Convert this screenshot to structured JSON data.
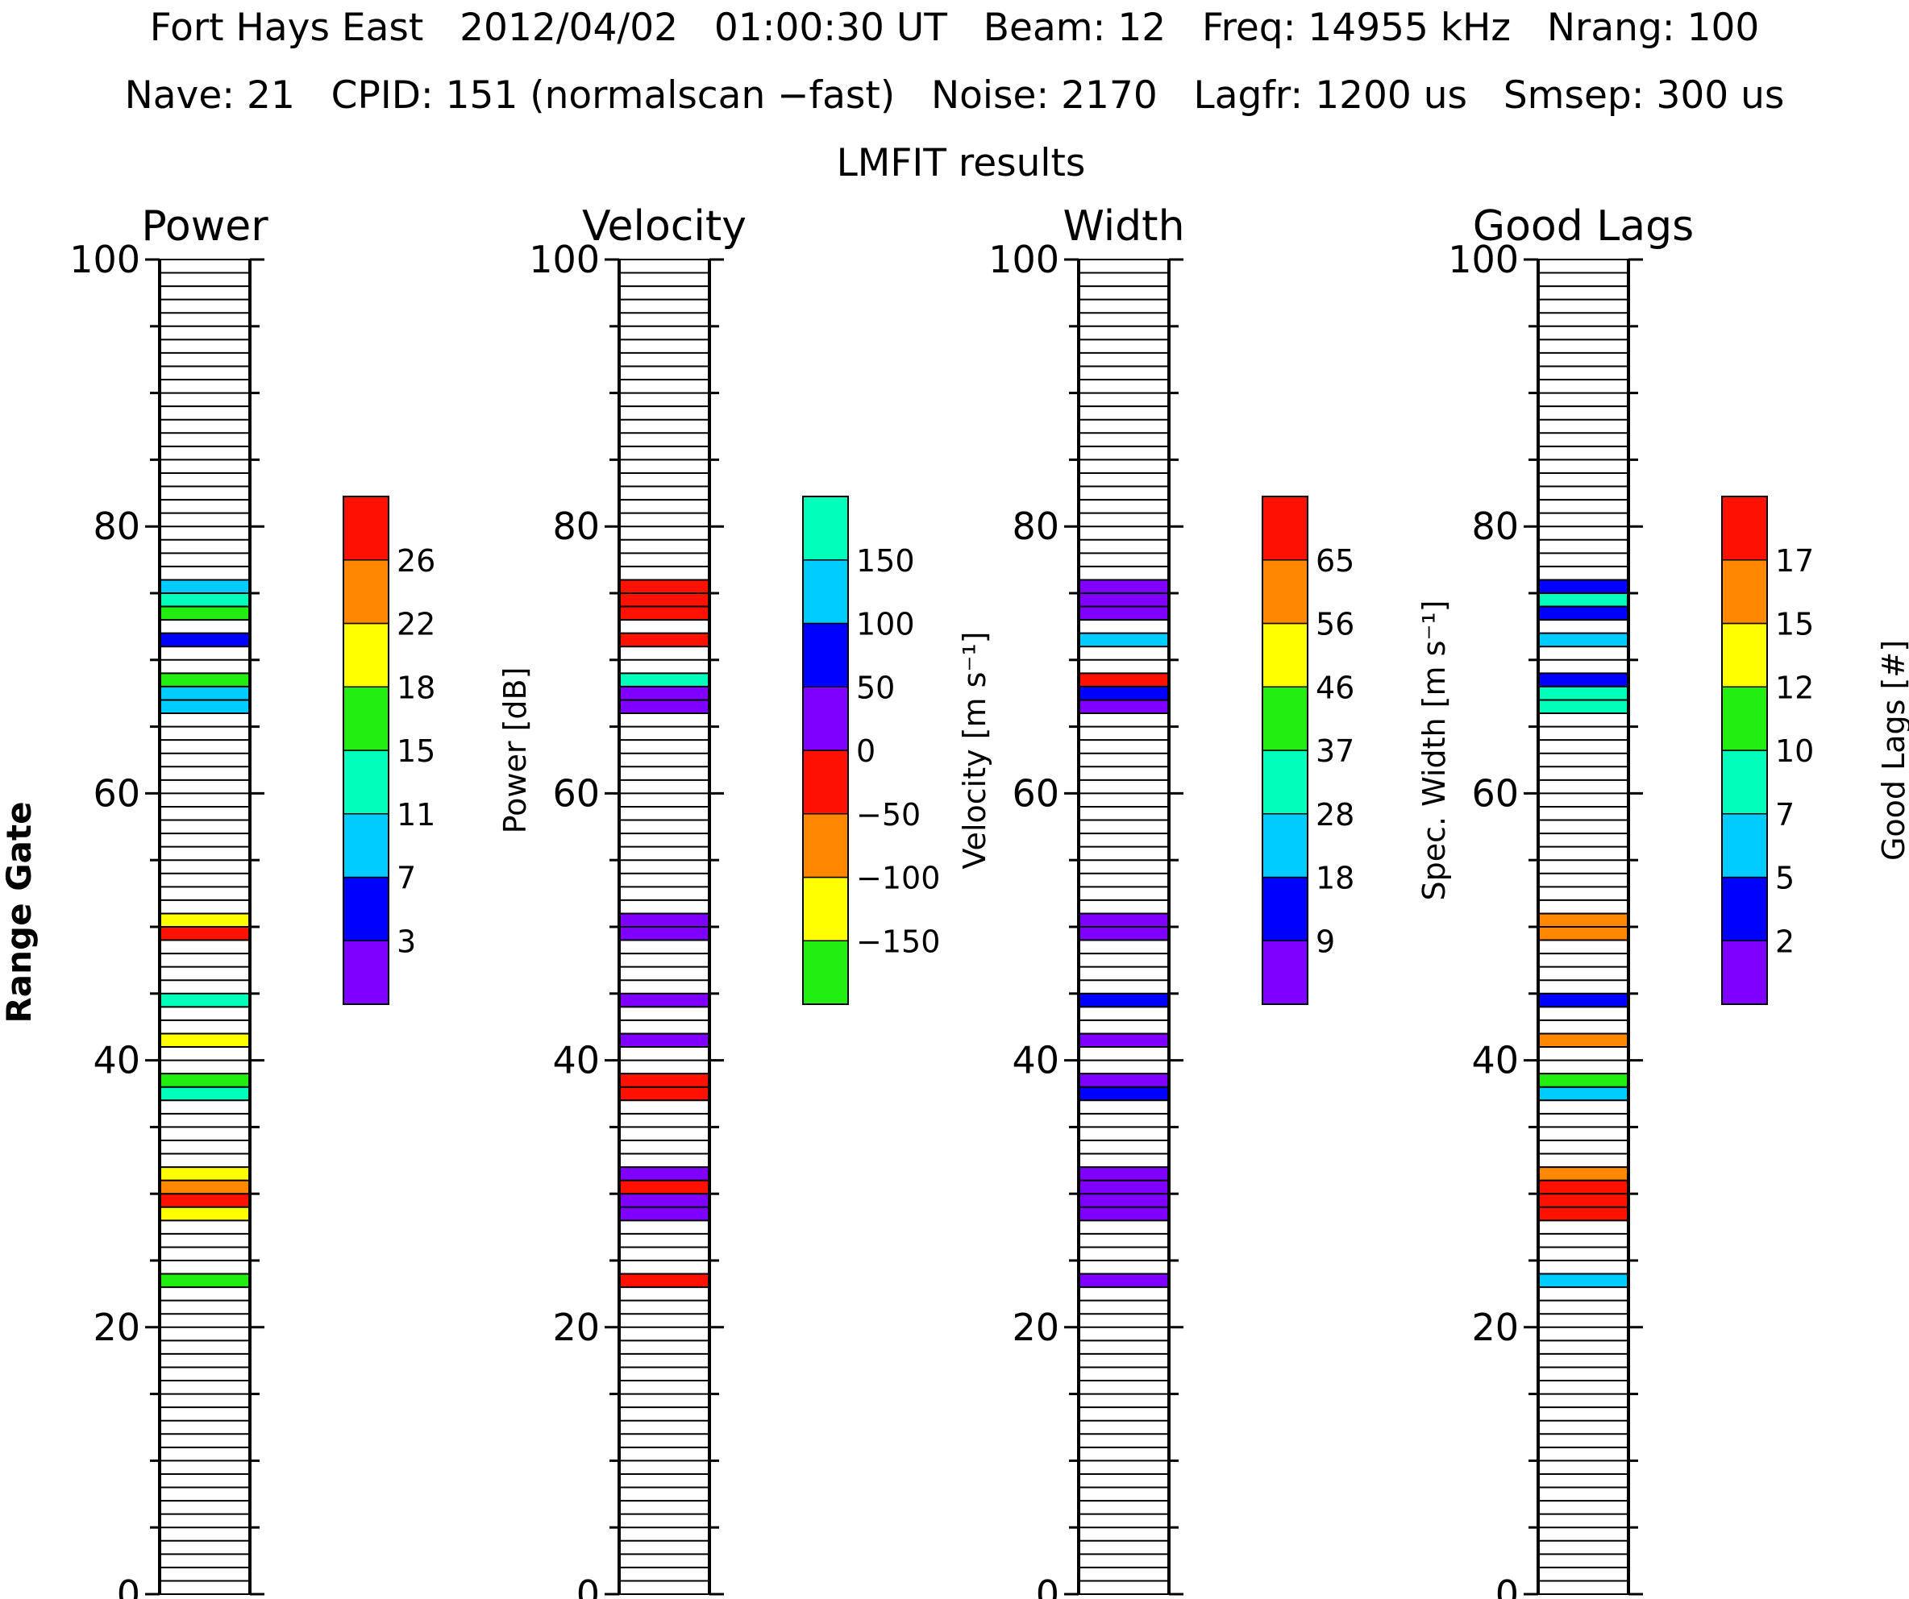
{
  "header": {
    "line1": "Fort Hays East   2012/04/02   01:00:30 UT   Beam: 12   Freq: 14955 kHz   Nrang: 100",
    "line2": "Nave: 21   CPID: 151 (normalscan −fast)   Noise: 2170   Lagfr: 1200 us   Smsep: 300 us",
    "subtitle": "LMFIT results"
  },
  "ylabel": "Range Gate",
  "palette": {
    "purple": "#8000ff",
    "blue": "#0000ff",
    "cyan": "#00ccff",
    "teal": "#00ffbb",
    "green": "#22ee11",
    "yellow": "#ffff00",
    "orange": "#ff8800",
    "red": "#ff1100"
  },
  "chart_data": [
    {
      "type": "heatmap",
      "title": "Power",
      "ylabel": "Range Gate",
      "ylim": [
        0,
        100
      ],
      "yticks": [
        "0",
        "20",
        "40",
        "60",
        "80",
        "100"
      ],
      "colorbar": {
        "label": "Power [dB]",
        "ticks": [
          "3",
          "7",
          "11",
          "15",
          "18",
          "22",
          "26"
        ],
        "colors": [
          "purple",
          "blue",
          "cyan",
          "teal",
          "green",
          "yellow",
          "orange",
          "red"
        ]
      },
      "cells": [
        {
          "gate": 23,
          "color": "green"
        },
        {
          "gate": 28,
          "color": "yellow"
        },
        {
          "gate": 29,
          "color": "red"
        },
        {
          "gate": 30,
          "color": "orange"
        },
        {
          "gate": 31,
          "color": "yellow"
        },
        {
          "gate": 37,
          "color": "teal"
        },
        {
          "gate": 38,
          "color": "green"
        },
        {
          "gate": 41,
          "color": "yellow"
        },
        {
          "gate": 44,
          "color": "teal"
        },
        {
          "gate": 49,
          "color": "red"
        },
        {
          "gate": 50,
          "color": "yellow"
        },
        {
          "gate": 66,
          "color": "cyan"
        },
        {
          "gate": 67,
          "color": "cyan"
        },
        {
          "gate": 68,
          "color": "green"
        },
        {
          "gate": 71,
          "color": "blue"
        },
        {
          "gate": 73,
          "color": "green"
        },
        {
          "gate": 74,
          "color": "teal"
        },
        {
          "gate": 75,
          "color": "cyan"
        }
      ]
    },
    {
      "type": "heatmap",
      "title": "Velocity",
      "ylabel": "",
      "ylim": [
        0,
        100
      ],
      "yticks": [
        "0",
        "20",
        "40",
        "60",
        "80",
        "100"
      ],
      "colorbar": {
        "label": "Velocity [m s⁻¹]",
        "ticks": [
          "−150",
          "−100",
          "−50",
          "0",
          "50",
          "100",
          "150"
        ],
        "colors": [
          "green",
          "yellow",
          "orange",
          "red",
          "purple",
          "blue",
          "cyan",
          "teal"
        ]
      },
      "cells": [
        {
          "gate": 23,
          "color": "red"
        },
        {
          "gate": 28,
          "color": "purple"
        },
        {
          "gate": 29,
          "color": "purple"
        },
        {
          "gate": 30,
          "color": "red"
        },
        {
          "gate": 31,
          "color": "purple"
        },
        {
          "gate": 37,
          "color": "red"
        },
        {
          "gate": 38,
          "color": "red"
        },
        {
          "gate": 41,
          "color": "purple"
        },
        {
          "gate": 44,
          "color": "purple"
        },
        {
          "gate": 49,
          "color": "purple"
        },
        {
          "gate": 50,
          "color": "purple"
        },
        {
          "gate": 66,
          "color": "purple"
        },
        {
          "gate": 67,
          "color": "purple"
        },
        {
          "gate": 68,
          "color": "teal"
        },
        {
          "gate": 71,
          "color": "red"
        },
        {
          "gate": 73,
          "color": "red"
        },
        {
          "gate": 74,
          "color": "red"
        },
        {
          "gate": 75,
          "color": "red"
        }
      ]
    },
    {
      "type": "heatmap",
      "title": "Width",
      "ylabel": "",
      "ylim": [
        0,
        100
      ],
      "yticks": [
        "0",
        "20",
        "40",
        "60",
        "80",
        "100"
      ],
      "colorbar": {
        "label": "Spec. Width [m s⁻¹]",
        "ticks": [
          "9",
          "18",
          "28",
          "37",
          "46",
          "56",
          "65"
        ],
        "colors": [
          "purple",
          "blue",
          "cyan",
          "teal",
          "green",
          "yellow",
          "orange",
          "red"
        ]
      },
      "cells": [
        {
          "gate": 23,
          "color": "purple"
        },
        {
          "gate": 28,
          "color": "purple"
        },
        {
          "gate": 29,
          "color": "purple"
        },
        {
          "gate": 30,
          "color": "purple"
        },
        {
          "gate": 31,
          "color": "purple"
        },
        {
          "gate": 37,
          "color": "blue"
        },
        {
          "gate": 38,
          "color": "purple"
        },
        {
          "gate": 41,
          "color": "purple"
        },
        {
          "gate": 44,
          "color": "blue"
        },
        {
          "gate": 49,
          "color": "purple"
        },
        {
          "gate": 50,
          "color": "purple"
        },
        {
          "gate": 66,
          "color": "purple"
        },
        {
          "gate": 67,
          "color": "blue"
        },
        {
          "gate": 68,
          "color": "red"
        },
        {
          "gate": 71,
          "color": "cyan"
        },
        {
          "gate": 73,
          "color": "purple"
        },
        {
          "gate": 74,
          "color": "purple"
        },
        {
          "gate": 75,
          "color": "purple"
        }
      ]
    },
    {
      "type": "heatmap",
      "title": "Good Lags",
      "ylabel": "",
      "ylim": [
        0,
        100
      ],
      "yticks": [
        "0",
        "20",
        "40",
        "60",
        "80",
        "100"
      ],
      "colorbar": {
        "label": "Good Lags [#]",
        "ticks": [
          "2",
          "5",
          "7",
          "10",
          "12",
          "15",
          "17"
        ],
        "colors": [
          "purple",
          "blue",
          "cyan",
          "teal",
          "green",
          "yellow",
          "orange",
          "red"
        ]
      },
      "cells": [
        {
          "gate": 23,
          "color": "cyan"
        },
        {
          "gate": 28,
          "color": "red"
        },
        {
          "gate": 29,
          "color": "red"
        },
        {
          "gate": 30,
          "color": "red"
        },
        {
          "gate": 31,
          "color": "orange"
        },
        {
          "gate": 37,
          "color": "cyan"
        },
        {
          "gate": 38,
          "color": "green"
        },
        {
          "gate": 41,
          "color": "orange"
        },
        {
          "gate": 44,
          "color": "blue"
        },
        {
          "gate": 49,
          "color": "orange"
        },
        {
          "gate": 50,
          "color": "orange"
        },
        {
          "gate": 66,
          "color": "teal"
        },
        {
          "gate": 67,
          "color": "teal"
        },
        {
          "gate": 68,
          "color": "blue"
        },
        {
          "gate": 71,
          "color": "cyan"
        },
        {
          "gate": 73,
          "color": "blue"
        },
        {
          "gate": 74,
          "color": "teal"
        },
        {
          "gate": 75,
          "color": "blue"
        }
      ]
    }
  ]
}
